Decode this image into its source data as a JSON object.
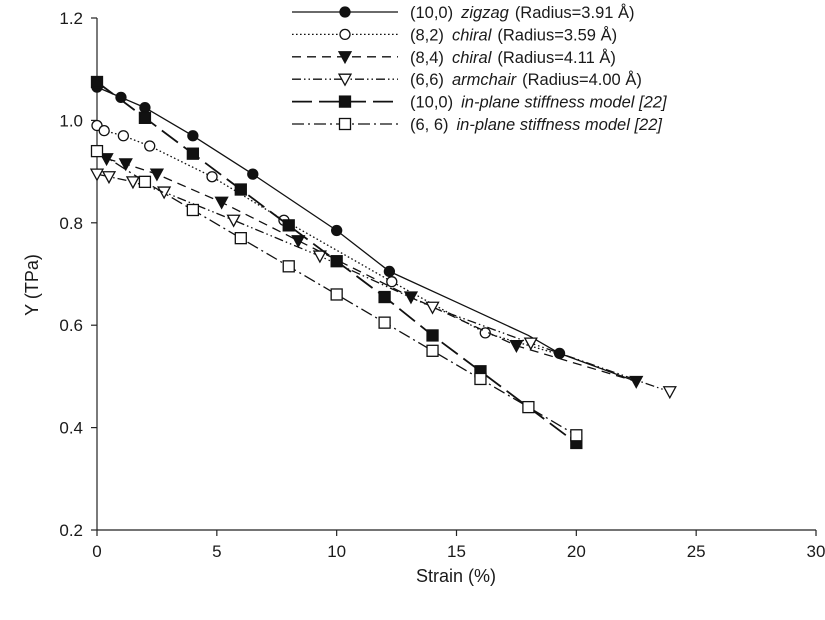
{
  "chart_data": {
    "type": "line",
    "title": "",
    "xlabel": "Strain (%)",
    "ylabel": "Y (TPa)",
    "xlim": [
      0,
      30
    ],
    "ylim": [
      0.2,
      1.2
    ],
    "xticks": [
      "0",
      "5",
      "10",
      "15",
      "20",
      "25",
      "30"
    ],
    "yticks": [
      "0.2",
      "0.4",
      "0.6",
      "0.8",
      "1.0",
      "1.2"
    ],
    "grid": false,
    "legend_position": "top-right",
    "series": [
      {
        "id": "zz10",
        "label_parts": [
          "(10,0)",
          "zigzag",
          "(Radius=3.91 Å)"
        ],
        "marker": "circle-filled",
        "line": "solid",
        "x": [
          0,
          1,
          2,
          4,
          6.5,
          10,
          12.2,
          19.3
        ],
        "y": [
          1.065,
          1.045,
          1.025,
          0.97,
          0.895,
          0.785,
          0.705,
          0.545
        ],
        "curve_x": [
          0,
          1,
          2,
          4,
          6.5,
          10,
          12.2,
          15,
          18,
          19.3,
          22.5
        ],
        "curve_y": [
          1.065,
          1.045,
          1.025,
          0.97,
          0.895,
          0.785,
          0.705,
          0.645,
          0.58,
          0.545,
          0.49
        ]
      },
      {
        "id": "ch82",
        "label_parts": [
          "(8,2)",
          "chiral",
          "(Radius=3.59 Å)"
        ],
        "marker": "circle-open",
        "line": "dotted",
        "x": [
          0,
          0.3,
          1.1,
          2.2,
          4.8,
          7.8,
          12.3,
          16.2
        ],
        "y": [
          0.99,
          0.98,
          0.97,
          0.95,
          0.89,
          0.805,
          0.685,
          0.585
        ],
        "curve_x": [
          0,
          0.3,
          1.1,
          2.2,
          4.8,
          7.8,
          12.3,
          16.2,
          19.5
        ],
        "curve_y": [
          0.99,
          0.98,
          0.97,
          0.95,
          0.89,
          0.805,
          0.685,
          0.585,
          0.54
        ]
      },
      {
        "id": "ch84",
        "label_parts": [
          "(8,4)",
          "chiral",
          "(Radius=4.11 Å)"
        ],
        "marker": "triangle-down-filled",
        "line": "dashed",
        "x": [
          0.4,
          1.2,
          2.5,
          5.2,
          8.4,
          13.1,
          17.5,
          22.5
        ],
        "y": [
          0.925,
          0.915,
          0.895,
          0.84,
          0.765,
          0.655,
          0.56,
          0.49
        ],
        "curve_x": [
          0.4,
          1.2,
          2.5,
          5.2,
          8.4,
          13.1,
          17.5,
          22.5
        ],
        "curve_y": [
          0.925,
          0.915,
          0.895,
          0.84,
          0.765,
          0.655,
          0.56,
          0.49
        ]
      },
      {
        "id": "ac66",
        "label_parts": [
          "(6,6)",
          "armchair",
          "(Radius=4.00 Å)"
        ],
        "marker": "triangle-down-open",
        "line": "dash-dot-dot",
        "x": [
          0,
          0.5,
          1.5,
          2.8,
          5.7,
          9.3,
          14,
          18.1,
          23.9
        ],
        "y": [
          0.895,
          0.89,
          0.88,
          0.86,
          0.805,
          0.735,
          0.635,
          0.565,
          0.47
        ],
        "curve_x": [
          0,
          0.5,
          1.5,
          2.8,
          5.7,
          9.3,
          14,
          18.1,
          23.9
        ],
        "curve_y": [
          0.895,
          0.89,
          0.88,
          0.86,
          0.805,
          0.735,
          0.635,
          0.565,
          0.47
        ]
      },
      {
        "id": "ips10",
        "label_parts": [
          "(10,0)",
          "in-plane stiffness model [22]"
        ],
        "marker": "square-filled",
        "line": "long-dash",
        "x": [
          0,
          2,
          4,
          6,
          8,
          10,
          12,
          14,
          16,
          20
        ],
        "y": [
          1.075,
          1.005,
          0.935,
          0.865,
          0.795,
          0.725,
          0.655,
          0.58,
          0.51,
          0.37
        ],
        "curve_x": [
          0,
          2,
          4,
          6,
          8,
          10,
          12,
          14,
          16,
          20
        ],
        "curve_y": [
          1.075,
          1.005,
          0.935,
          0.865,
          0.795,
          0.725,
          0.655,
          0.58,
          0.51,
          0.37
        ]
      },
      {
        "id": "ips66",
        "label_parts": [
          "(6, 6)",
          "in-plane stiffness model [22]"
        ],
        "marker": "square-open",
        "line": "dash-dot",
        "x": [
          0,
          2,
          4,
          6,
          8,
          10,
          12,
          14,
          16,
          18,
          20
        ],
        "y": [
          0.94,
          0.88,
          0.825,
          0.77,
          0.715,
          0.66,
          0.605,
          0.55,
          0.495,
          0.44,
          0.385
        ],
        "curve_x": [
          0,
          2,
          4,
          6,
          8,
          10,
          12,
          14,
          16,
          18,
          20
        ],
        "curve_y": [
          0.94,
          0.88,
          0.825,
          0.77,
          0.715,
          0.66,
          0.605,
          0.55,
          0.495,
          0.44,
          0.385
        ]
      }
    ]
  }
}
